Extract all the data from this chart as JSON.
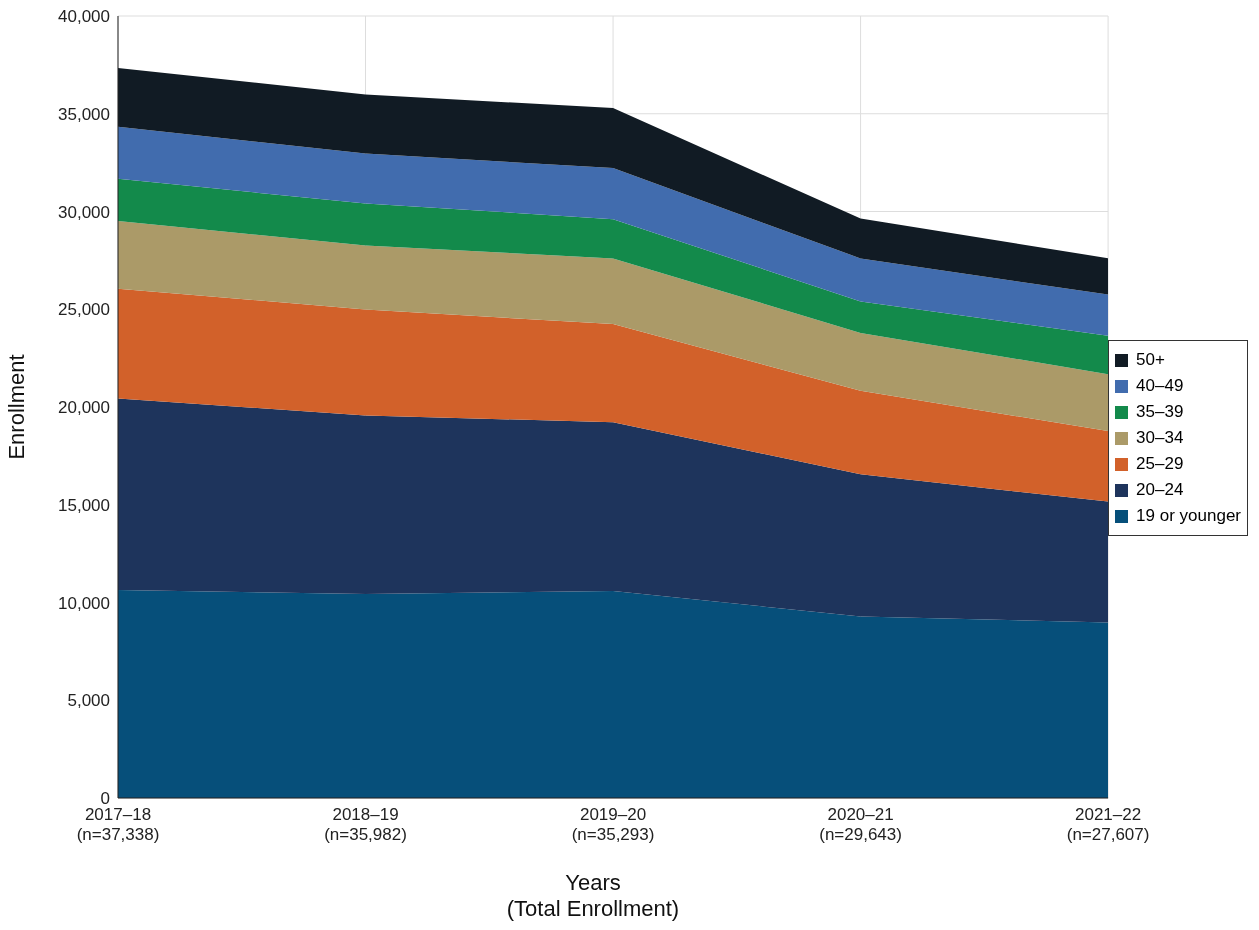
{
  "chart_data": {
    "type": "area",
    "stacked": true,
    "xlabel": "Years\n(Total Enrollment)",
    "ylabel": "Enrollment",
    "categories": [
      "2017–18\n(n=37,338)",
      "2018–19\n(n=35,982)",
      "2019–20\n(n=35,293)",
      "2020–21\n(n=29,643)",
      "2021–22\n(n=27,607)"
    ],
    "series": [
      {
        "name": "19 or younger",
        "color": "#064f7a",
        "values": [
          10640,
          10440,
          10590,
          9280,
          8980
        ]
      },
      {
        "name": "20–24",
        "color": "#1e345c",
        "values": [
          9790,
          9130,
          8630,
          7280,
          6180
        ]
      },
      {
        "name": "25–29",
        "color": "#d2612a",
        "values": [
          5620,
          5420,
          5020,
          4270,
          3610
        ]
      },
      {
        "name": "30–34",
        "color": "#ab9a68",
        "values": [
          3460,
          3270,
          3360,
          2960,
          2910
        ]
      },
      {
        "name": "35–39",
        "color": "#138a4b",
        "values": [
          2160,
          2150,
          2010,
          1610,
          1960
        ]
      },
      {
        "name": "40–49",
        "color": "#416cae",
        "values": [
          2660,
          2560,
          2610,
          2200,
          2110
        ]
      },
      {
        "name": "50+",
        "color": "#111b24",
        "values": [
          3010,
          3010,
          3070,
          2040,
          1860
        ]
      }
    ],
    "ylim": [
      0,
      40000
    ],
    "yticks": [
      0,
      {
        "value": 5000,
        "label": "5,000"
      },
      {
        "value": 10000,
        "label": "10,000"
      },
      {
        "value": 15000,
        "label": "15,000"
      },
      {
        "value": 20000,
        "label": "20,000"
      },
      {
        "value": 25000,
        "label": "25,000"
      },
      {
        "value": 30000,
        "label": "30,000"
      },
      {
        "value": 35000,
        "label": "35,000"
      },
      {
        "value": 40000,
        "label": "40,000"
      }
    ],
    "grid": true,
    "legend": "right"
  }
}
